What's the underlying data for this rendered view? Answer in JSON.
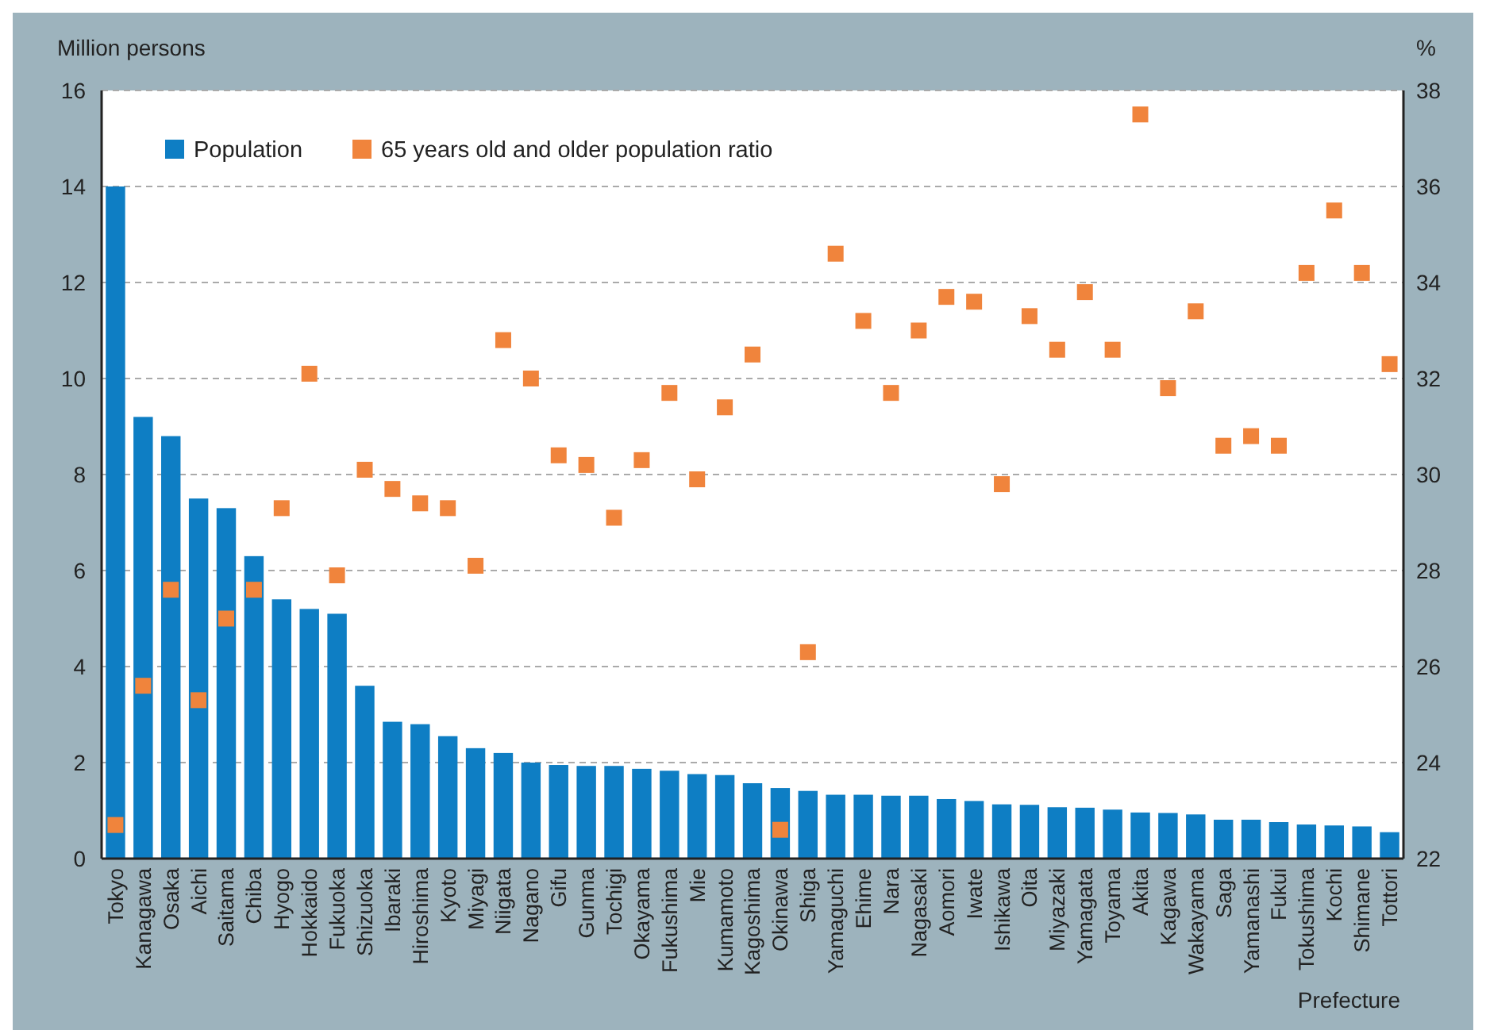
{
  "chart_data": {
    "type": "bar",
    "xlabel": "Prefecture",
    "ylabel": "Million persons",
    "y2label": "%",
    "categories": [
      "Tokyo",
      "Kanagawa",
      "Osaka",
      "Aichi",
      "Saitama",
      "Chiba",
      "Hyogo",
      "Hokkaido",
      "Fukuoka",
      "Shizuoka",
      "Ibaraki",
      "Hiroshima",
      "Kyoto",
      "Miyagi",
      "Niigata",
      "Nagano",
      "Gifu",
      "Gunma",
      "Tochigi",
      "Okayama",
      "Fukushima",
      "Mie",
      "Kumamoto",
      "Kagoshima",
      "Okinawa",
      "Shiga",
      "Yamaguchi",
      "Ehime",
      "Nara",
      "Nagasaki",
      "Aomori",
      "Iwate",
      "Ishikawa",
      "Oita",
      "Miyazaki",
      "Yamagata",
      "Toyama",
      "Akita",
      "Kagawa",
      "Wakayama",
      "Saga",
      "Yamanashi",
      "Fukui",
      "Tokushima",
      "Kochi",
      "Shimane",
      "Tottori"
    ],
    "series": [
      {
        "name": "Population",
        "color": "#0e7ec4",
        "values": [
          14.0,
          9.2,
          8.8,
          7.5,
          7.3,
          6.3,
          5.4,
          5.2,
          5.1,
          3.6,
          2.85,
          2.8,
          2.55,
          2.3,
          2.2,
          2.0,
          1.95,
          1.93,
          1.93,
          1.87,
          1.83,
          1.76,
          1.74,
          1.57,
          1.47,
          1.41,
          1.33,
          1.33,
          1.31,
          1.31,
          1.24,
          1.2,
          1.13,
          1.12,
          1.07,
          1.06,
          1.02,
          0.96,
          0.95,
          0.92,
          0.81,
          0.81,
          0.76,
          0.71,
          0.69,
          0.67,
          0.55
        ]
      },
      {
        "name": "65 years old and older population ratio",
        "type": "scatter",
        "axis": "y2",
        "color": "#f0843c",
        "values": [
          22.7,
          25.6,
          27.6,
          25.3,
          27.0,
          27.6,
          29.3,
          32.1,
          27.9,
          30.1,
          29.7,
          29.4,
          29.3,
          28.1,
          32.8,
          32.0,
          30.4,
          30.2,
          29.1,
          30.3,
          31.7,
          29.9,
          31.4,
          32.5,
          22.6,
          26.3,
          34.6,
          33.2,
          31.7,
          33.0,
          33.7,
          33.6,
          29.8,
          33.3,
          32.6,
          33.8,
          32.6,
          37.5,
          31.8,
          33.4,
          30.6,
          30.8,
          30.6,
          34.2,
          35.5,
          34.2,
          32.3
        ]
      }
    ],
    "ylim": [
      0,
      16
    ],
    "yticks": [
      0,
      2,
      4,
      6,
      8,
      10,
      12,
      14,
      16
    ],
    "y2lim": [
      22,
      38
    ],
    "y2ticks": [
      22,
      24,
      26,
      28,
      30,
      32,
      34,
      36,
      38
    ],
    "grid": "y",
    "legend": "top left",
    "marker": "square"
  }
}
